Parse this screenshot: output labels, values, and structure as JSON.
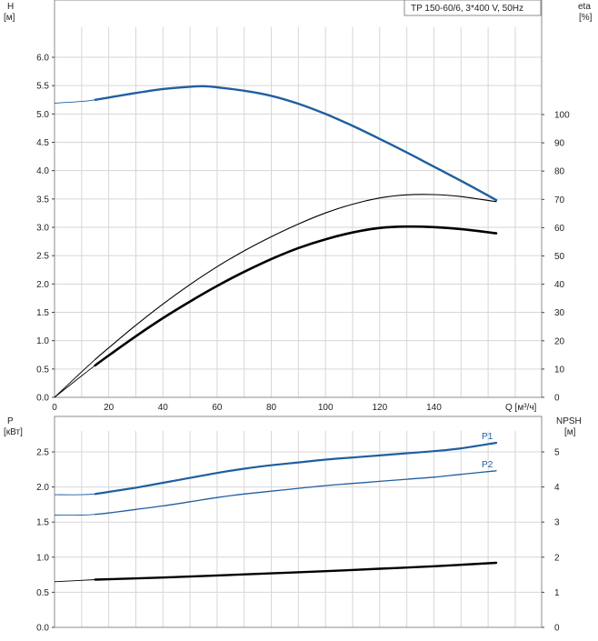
{
  "chart_data": [
    {
      "type": "line",
      "panel": "top",
      "title": "TP 150-60/6, 3*400 V, 50Hz",
      "xlabel": "Q [м³/ч]",
      "xticks": [
        "0",
        "20",
        "40",
        "60",
        "80",
        "100",
        "120",
        "140"
      ],
      "xlim": [
        0,
        165
      ],
      "ylabel": "H",
      "ylabel_unit": "[м]",
      "ylim": [
        0,
        6.4
      ],
      "yticks": [
        "0.0",
        "0.5",
        "1.0",
        "1.5",
        "2.0",
        "2.5",
        "3.0",
        "3.5",
        "4.0",
        "4.5",
        "5.0",
        "5.5",
        "6.0"
      ],
      "y2label": "eta",
      "y2label_unit": "[%]",
      "y2lim": [
        0,
        128
      ],
      "y2ticks": [
        "0",
        "10",
        "20",
        "30",
        "40",
        "50",
        "60",
        "70",
        "80",
        "90",
        "100"
      ],
      "grid": true,
      "series": [
        {
          "axis": "left",
          "color": "#1f5f9f",
          "width": 2.4,
          "extension_from": 15,
          "x": [
            0,
            10,
            15,
            20,
            30,
            40,
            50,
            55,
            60,
            70,
            80,
            90,
            100,
            110,
            120,
            130,
            140,
            150,
            163
          ],
          "y": [
            5.19,
            5.22,
            5.25,
            5.29,
            5.37,
            5.44,
            5.48,
            5.49,
            5.47,
            5.41,
            5.32,
            5.18,
            5.0,
            4.79,
            4.56,
            4.32,
            4.07,
            3.82,
            3.48
          ]
        },
        {
          "axis": "right",
          "color": "#000000",
          "width": 1.1,
          "extension_from": 15,
          "x": [
            0,
            10,
            15,
            20,
            30,
            40,
            50,
            60,
            70,
            80,
            90,
            100,
            110,
            120,
            130,
            140,
            150,
            163
          ],
          "y": [
            0,
            9,
            13.4,
            17.5,
            25.5,
            33,
            39.9,
            46.2,
            51.8,
            56.8,
            61.3,
            65.2,
            68.3,
            70.5,
            71.6,
            71.7,
            71.0,
            69.2
          ]
        },
        {
          "axis": "right",
          "color": "#000000",
          "width": 2.6,
          "extension_from": 15,
          "x": [
            0,
            10,
            15,
            20,
            30,
            40,
            50,
            60,
            70,
            80,
            90,
            100,
            110,
            120,
            130,
            140,
            150,
            163
          ],
          "y": [
            0,
            7.6,
            11.3,
            14.8,
            21.6,
            28.0,
            33.9,
            39.4,
            44.4,
            48.9,
            52.8,
            55.9,
            58.3,
            59.9,
            60.4,
            60.2,
            59.5,
            58.0
          ]
        }
      ]
    },
    {
      "type": "line",
      "panel": "bottom",
      "xlim": [
        0,
        165
      ],
      "ylabel": "P",
      "ylabel_unit": "[кВт]",
      "ylim": [
        0,
        3.0
      ],
      "yticks": [
        "0.0",
        "0.5",
        "1.0",
        "1.5",
        "2.0",
        "2.5"
      ],
      "y2label": "NPSH",
      "y2label_unit": "[м]",
      "y2lim": [
        0,
        6.0
      ],
      "y2ticks": [
        "0",
        "1",
        "2",
        "3",
        "4",
        "5"
      ],
      "grid": true,
      "series": [
        {
          "name": "P1",
          "axis": "left",
          "color": "#1f5f9f",
          "width": 2.2,
          "extension_from": 15,
          "x": [
            0,
            10,
            15,
            20,
            30,
            40,
            50,
            60,
            70,
            80,
            90,
            100,
            110,
            120,
            130,
            140,
            150,
            163
          ],
          "y": [
            1.89,
            1.89,
            1.9,
            1.93,
            1.99,
            2.06,
            2.13,
            2.2,
            2.26,
            2.31,
            2.35,
            2.39,
            2.42,
            2.45,
            2.48,
            2.51,
            2.55,
            2.63
          ]
        },
        {
          "name": "P2",
          "axis": "left",
          "color": "#1f5f9f",
          "width": 1.3,
          "extension_from": 15,
          "x": [
            0,
            10,
            15,
            20,
            30,
            40,
            50,
            60,
            70,
            80,
            90,
            100,
            110,
            120,
            130,
            140,
            150,
            163
          ],
          "y": [
            1.6,
            1.6,
            1.61,
            1.63,
            1.68,
            1.73,
            1.79,
            1.85,
            1.9,
            1.94,
            1.98,
            2.02,
            2.05,
            2.08,
            2.11,
            2.14,
            2.18,
            2.23
          ]
        },
        {
          "axis": "right",
          "color": "#000000",
          "width": 2.4,
          "extension_from": 15,
          "x": [
            0,
            15,
            40,
            60,
            80,
            100,
            120,
            140,
            163
          ],
          "y": [
            1.3,
            1.36,
            1.42,
            1.48,
            1.54,
            1.6,
            1.67,
            1.74,
            1.84
          ]
        }
      ]
    }
  ]
}
